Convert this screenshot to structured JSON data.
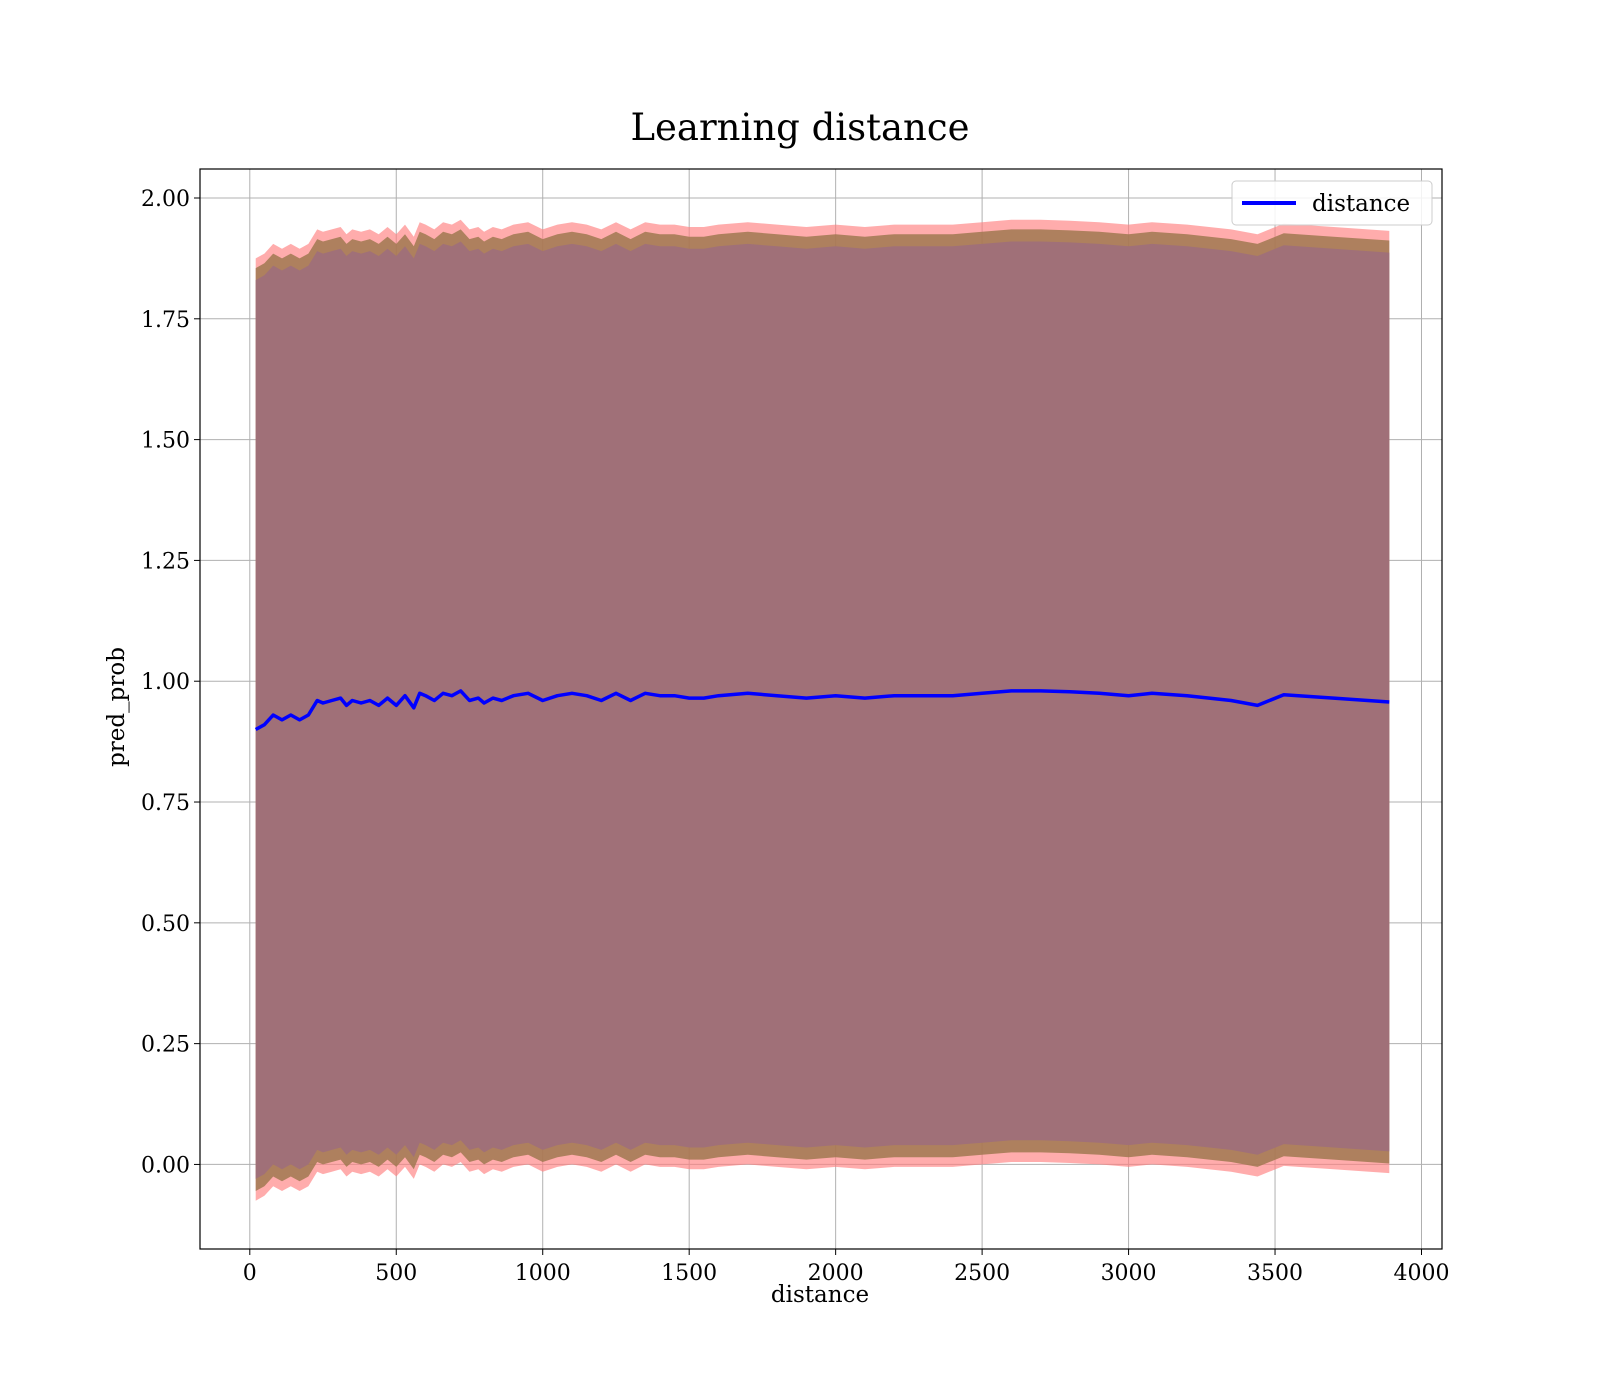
{
  "chart_data": {
    "type": "line",
    "title": "Learning distance",
    "xlabel": "distance",
    "ylabel": "pred_prob",
    "xlim": [
      -170,
      4070
    ],
    "ylim": [
      -0.175,
      2.06
    ],
    "x_ticks": [
      0,
      500,
      1000,
      1500,
      2000,
      2500,
      3000,
      3500,
      4000
    ],
    "y_ticks": [
      0.0,
      0.25,
      0.5,
      0.75,
      1.0,
      1.25,
      1.5,
      1.75,
      2.0
    ],
    "x_tick_labels": [
      "0",
      "500",
      "1000",
      "1500",
      "2000",
      "2500",
      "3000",
      "3500",
      "4000"
    ],
    "y_tick_labels": [
      "0.00",
      "0.25",
      "0.50",
      "0.75",
      "1.00",
      "1.25",
      "1.50",
      "1.75",
      "2.00"
    ],
    "grid": true,
    "legend": {
      "placement": "top-right",
      "entries": [
        "distance"
      ]
    },
    "colors": {
      "line": "#0000ff",
      "band_outer": "#ff7f7f",
      "band_mid": "#a07850",
      "band_inner": "#a07078"
    },
    "series": [
      {
        "name": "distance",
        "x": [
          20,
          50,
          80,
          110,
          140,
          170,
          200,
          230,
          250,
          280,
          310,
          330,
          350,
          380,
          410,
          440,
          470,
          500,
          530,
          560,
          580,
          600,
          630,
          660,
          690,
          720,
          750,
          780,
          800,
          830,
          860,
          900,
          950,
          1000,
          1050,
          1100,
          1150,
          1200,
          1250,
          1300,
          1350,
          1400,
          1450,
          1500,
          1550,
          1600,
          1700,
          1800,
          1900,
          2000,
          2100,
          2200,
          2300,
          2400,
          2500,
          2600,
          2700,
          2800,
          2900,
          3000,
          3080,
          3200,
          3350,
          3440,
          3530,
          3700,
          3890
        ],
        "y": [
          0.9,
          0.91,
          0.93,
          0.92,
          0.93,
          0.92,
          0.93,
          0.96,
          0.955,
          0.96,
          0.965,
          0.95,
          0.96,
          0.955,
          0.96,
          0.95,
          0.965,
          0.95,
          0.97,
          0.945,
          0.975,
          0.97,
          0.96,
          0.975,
          0.97,
          0.98,
          0.96,
          0.965,
          0.955,
          0.965,
          0.96,
          0.97,
          0.975,
          0.96,
          0.97,
          0.975,
          0.97,
          0.96,
          0.975,
          0.96,
          0.975,
          0.97,
          0.97,
          0.965,
          0.965,
          0.97,
          0.975,
          0.97,
          0.965,
          0.97,
          0.965,
          0.97,
          0.97,
          0.97,
          0.975,
          0.98,
          0.98,
          0.978,
          0.975,
          0.97,
          0.975,
          0.97,
          0.96,
          0.95,
          0.972,
          0.965,
          0.957
        ],
        "band_outer": {
          "upper_offset": 0.975,
          "lower_offset": -0.975
        },
        "band_mid": {
          "upper_offset": 0.955,
          "lower_offset": -0.955
        },
        "band_inner": {
          "upper_offset": 0.93,
          "lower_offset": -0.93
        }
      }
    ]
  }
}
